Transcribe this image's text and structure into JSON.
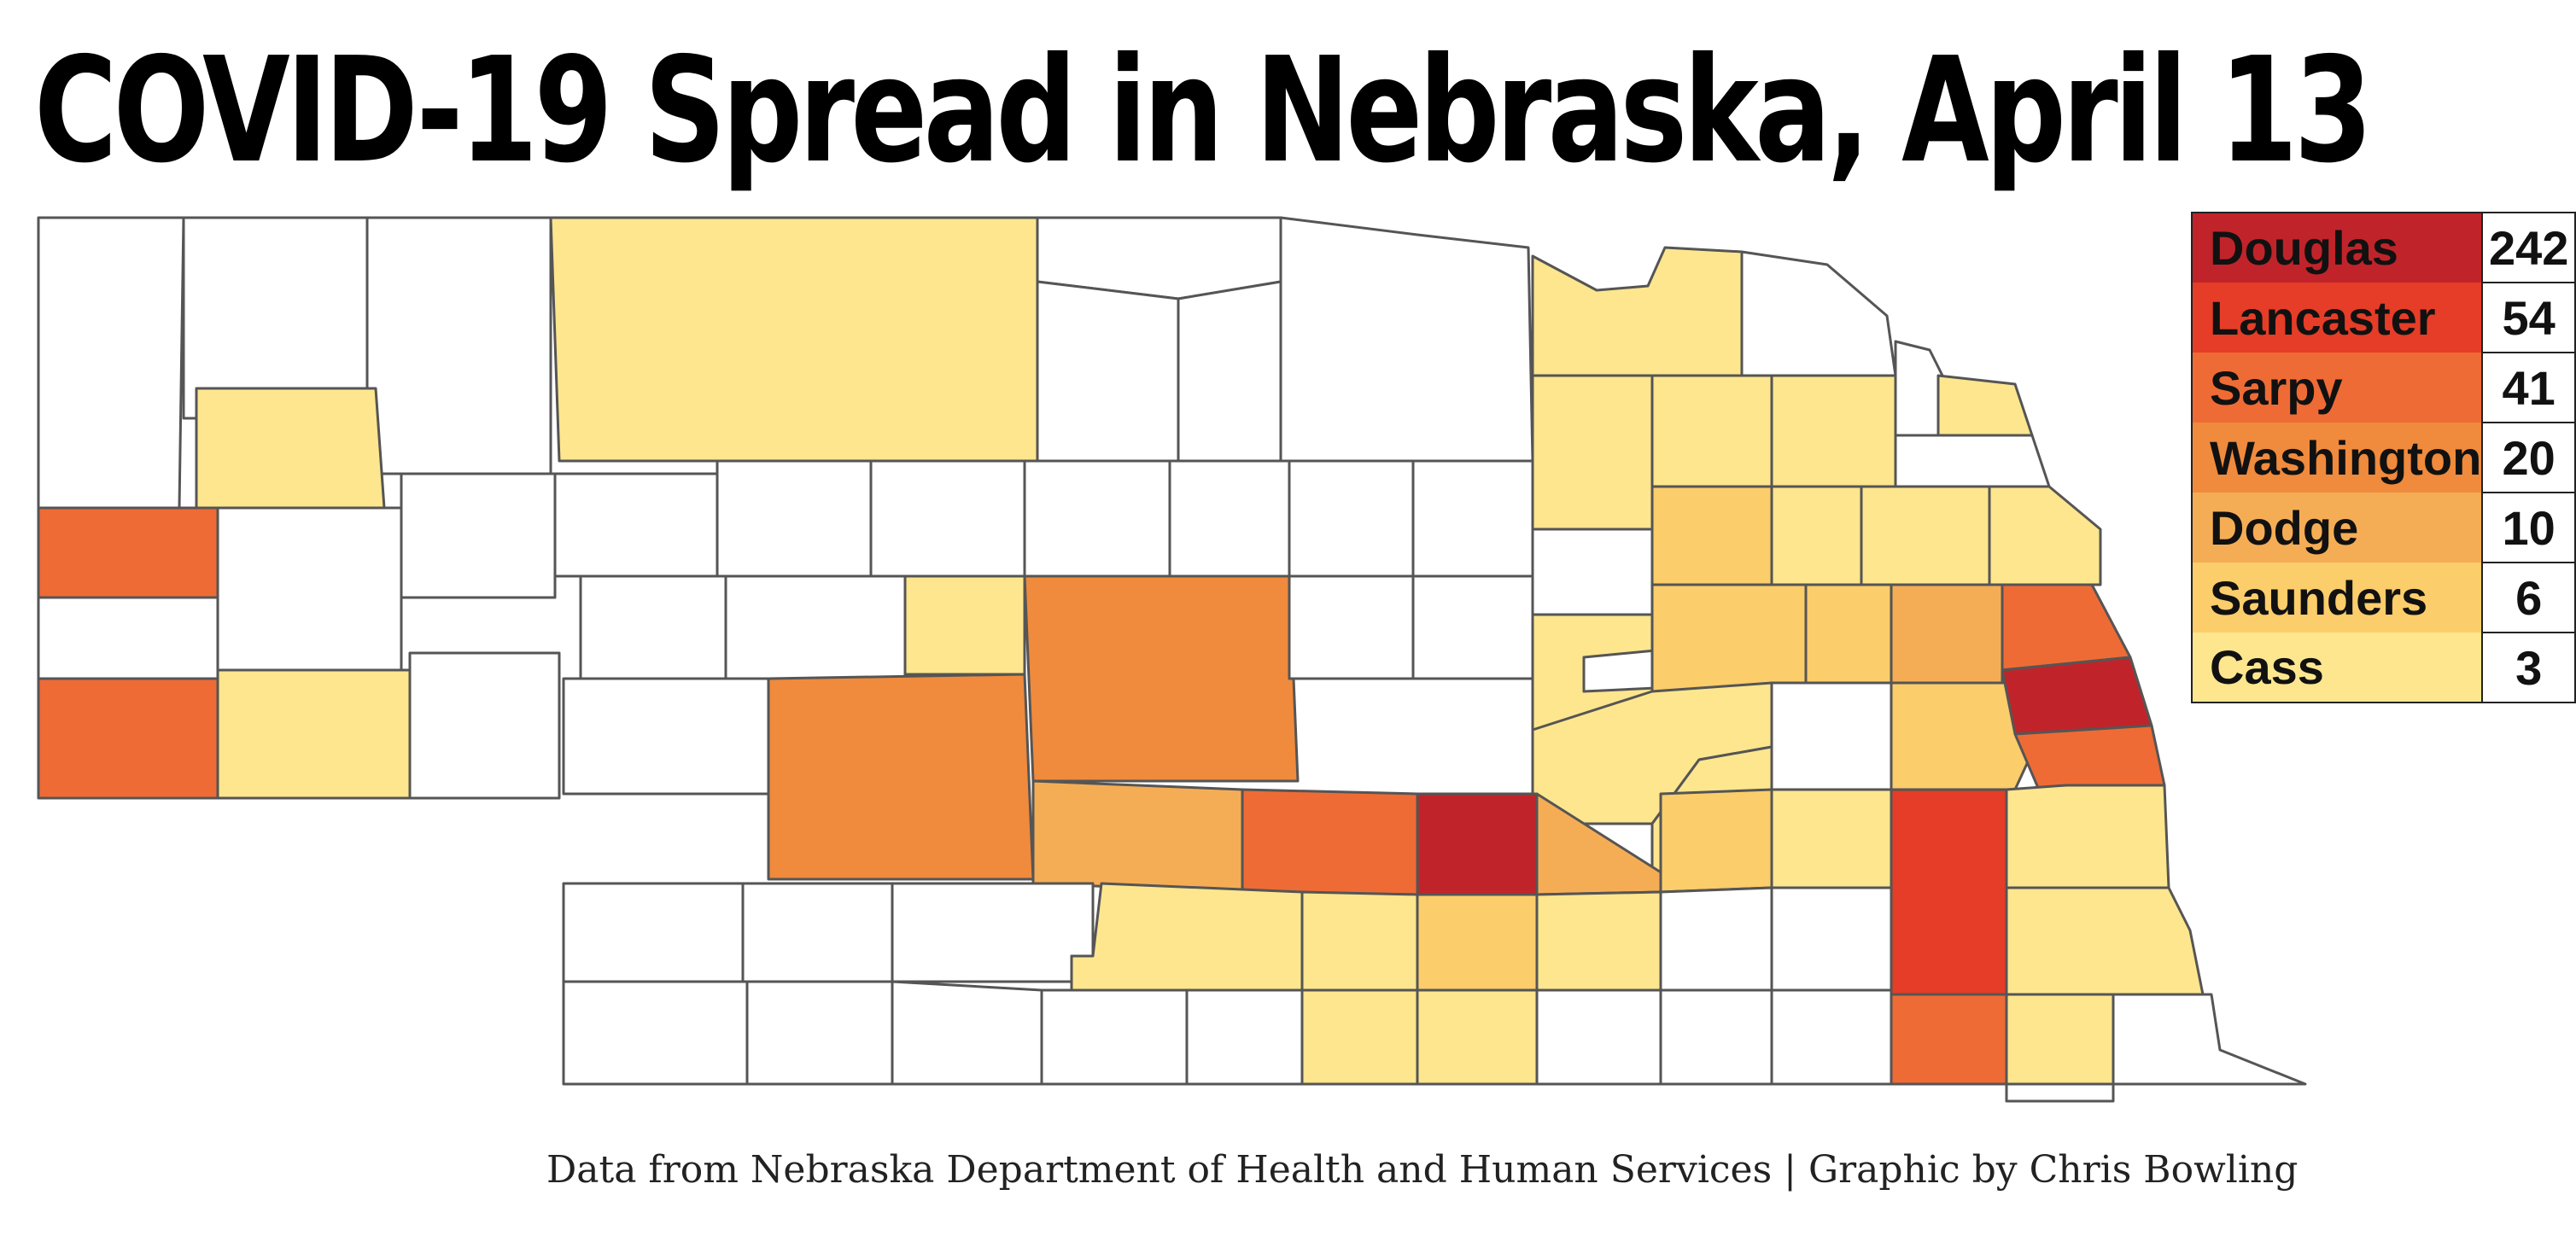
{
  "title": "COVID-19 Spread in Nebraska, April 13",
  "source": "Data from Nebraska Department of Health and Human Services | Graphic by Chris Bowling",
  "legend": [
    {
      "county": "Douglas",
      "cases": "242",
      "color": "#c0242a"
    },
    {
      "county": "Lancaster",
      "cases": "54",
      "color": "#e53d27"
    },
    {
      "county": "Sarpy",
      "cases": "41",
      "color": "#ef6b35"
    },
    {
      "county": "Washington",
      "cases": "20",
      "color": "#f08a3c"
    },
    {
      "county": "Dodge",
      "cases": "10",
      "color": "#f5ad55"
    },
    {
      "county": "Saunders",
      "cases": "6",
      "color": "#fbcd6b"
    },
    {
      "county": "Cass",
      "cases": "3",
      "color": "#fde68e"
    }
  ],
  "colors": {
    "no_cases": "#ffffff",
    "border": "#555555"
  }
}
